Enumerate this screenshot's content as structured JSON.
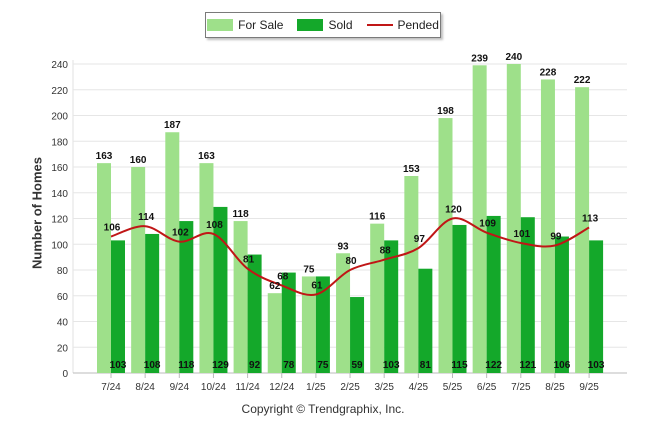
{
  "chart_data": {
    "type": "bar",
    "title": "",
    "xlabel": "",
    "ylabel": "Number of Homes",
    "ylim": [
      0,
      240
    ],
    "yticks": [
      0,
      20,
      40,
      60,
      80,
      100,
      120,
      140,
      160,
      180,
      200,
      220,
      240
    ],
    "grid": true,
    "legend_position": "top-center",
    "categories": [
      "7/24",
      "8/24",
      "9/24",
      "10/24",
      "11/24",
      "12/24",
      "1/25",
      "2/25",
      "3/25",
      "4/25",
      "5/25",
      "6/25",
      "7/25",
      "8/25",
      "9/25"
    ],
    "series": [
      {
        "name": "For Sale",
        "type": "bar",
        "color": "#9ee08a",
        "values": [
          163,
          160,
          187,
          163,
          118,
          62,
          75,
          93,
          116,
          153,
          198,
          239,
          240,
          228,
          222
        ]
      },
      {
        "name": "Sold",
        "type": "bar",
        "color": "#14a82a",
        "values": [
          103,
          108,
          118,
          129,
          92,
          78,
          75,
          59,
          103,
          81,
          115,
          122,
          121,
          106,
          103
        ]
      },
      {
        "name": "Pended",
        "type": "line",
        "color": "#c01616",
        "values": [
          106,
          114,
          102,
          108,
          81,
          68,
          61,
          80,
          88,
          97,
          120,
          109,
          101,
          99,
          113
        ]
      }
    ],
    "copyright": "Copyright © Trendgraphix, Inc."
  }
}
